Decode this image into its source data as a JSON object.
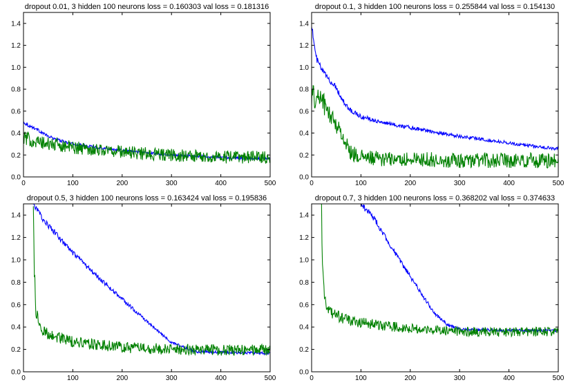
{
  "chart_data": [
    {
      "type": "line",
      "title": "dropout 0.01, 3 hidden 100 neurons  loss = 0.160303 val loss = 0.181316",
      "xlim": [
        0,
        500
      ],
      "ylim": [
        0.0,
        1.5
      ],
      "xticks": [
        0,
        100,
        200,
        300,
        400,
        500
      ],
      "yticks": [
        0.0,
        0.2,
        0.4,
        0.6,
        0.8,
        1.0,
        1.2,
        1.4
      ],
      "series": [
        {
          "color": "#0000ff",
          "x": [
            0,
            10,
            25,
            50,
            75,
            100,
            150,
            200,
            250,
            300,
            350,
            400,
            450,
            500
          ],
          "y": [
            0.5,
            0.47,
            0.44,
            0.37,
            0.33,
            0.3,
            0.27,
            0.24,
            0.22,
            0.2,
            0.19,
            0.18,
            0.17,
            0.165
          ],
          "noise": 0.012
        },
        {
          "color": "#008000",
          "x": [
            0,
            25,
            50,
            75,
            100,
            150,
            200,
            250,
            300,
            350,
            400,
            450,
            500
          ],
          "y": [
            0.36,
            0.32,
            0.3,
            0.29,
            0.27,
            0.25,
            0.23,
            0.21,
            0.2,
            0.19,
            0.18,
            0.18,
            0.18
          ],
          "noise": 0.06
        }
      ]
    },
    {
      "type": "line",
      "title": "dropout 0.1, 3 hidden 100 neurons  loss = 0.255844 val loss = 0.154130",
      "xlim": [
        0,
        500
      ],
      "ylim": [
        0.0,
        1.5
      ],
      "xticks": [
        0,
        100,
        200,
        300,
        400,
        500
      ],
      "yticks": [
        0.0,
        0.2,
        0.4,
        0.6,
        0.8,
        1.0,
        1.2,
        1.4
      ],
      "series": [
        {
          "color": "#0000ff",
          "x": [
            0,
            5,
            10,
            20,
            30,
            40,
            50,
            60,
            75,
            100,
            150,
            200,
            250,
            300,
            350,
            400,
            450,
            500
          ],
          "y": [
            1.4,
            1.2,
            1.08,
            0.98,
            0.92,
            0.86,
            0.82,
            0.72,
            0.62,
            0.55,
            0.49,
            0.45,
            0.41,
            0.37,
            0.34,
            0.31,
            0.28,
            0.255
          ],
          "noise": 0.015
        },
        {
          "color": "#008000",
          "x": [
            0,
            10,
            20,
            30,
            40,
            50,
            60,
            70,
            80,
            100,
            150,
            200,
            250,
            300,
            400,
            500
          ],
          "y": [
            0.75,
            0.7,
            0.75,
            0.6,
            0.55,
            0.48,
            0.4,
            0.3,
            0.22,
            0.18,
            0.16,
            0.16,
            0.155,
            0.15,
            0.15,
            0.15
          ],
          "noise": 0.07
        }
      ]
    },
    {
      "type": "line",
      "title": "dropout 0.5, 3 hidden 100 neurons  loss = 0.163424 val loss = 0.195836",
      "xlim": [
        0,
        500
      ],
      "ylim": [
        0.0,
        1.5
      ],
      "xticks": [
        0,
        100,
        200,
        300,
        400,
        500
      ],
      "yticks": [
        0.0,
        0.2,
        0.4,
        0.6,
        0.8,
        1.0,
        1.2,
        1.4
      ],
      "series": [
        {
          "color": "#0000ff",
          "x": [
            20,
            40,
            60,
            100,
            150,
            200,
            250,
            300,
            350,
            400,
            450,
            500
          ],
          "y": [
            1.5,
            1.36,
            1.26,
            1.06,
            0.85,
            0.65,
            0.45,
            0.26,
            0.18,
            0.175,
            0.17,
            0.165
          ],
          "noise": 0.012
        },
        {
          "color": "#008000",
          "x": [
            20,
            22,
            25,
            30,
            35,
            50,
            75,
            100,
            150,
            200,
            300,
            400,
            500
          ],
          "y": [
            1.5,
            0.9,
            0.55,
            0.45,
            0.38,
            0.34,
            0.3,
            0.27,
            0.24,
            0.22,
            0.2,
            0.195,
            0.195
          ],
          "noise": 0.05
        }
      ]
    },
    {
      "type": "line",
      "title": "dropout 0.7, 3 hidden 100 neurons  loss = 0.368202 val loss = 0.374633",
      "xlim": [
        0,
        500
      ],
      "ylim": [
        0.0,
        1.5
      ],
      "xticks": [
        0,
        100,
        200,
        300,
        400,
        500
      ],
      "yticks": [
        0.0,
        0.2,
        0.4,
        0.6,
        0.8,
        1.0,
        1.2,
        1.4
      ],
      "series": [
        {
          "color": "#0000ff",
          "x": [
            100,
            125,
            150,
            175,
            200,
            225,
            250,
            275,
            300,
            350,
            400,
            450,
            500
          ],
          "y": [
            1.5,
            1.38,
            1.2,
            1.02,
            0.85,
            0.68,
            0.52,
            0.42,
            0.38,
            0.375,
            0.37,
            0.37,
            0.37
          ],
          "noise": 0.012
        },
        {
          "color": "#008000",
          "x": [
            20,
            22,
            25,
            30,
            40,
            50,
            75,
            100,
            150,
            200,
            250,
            300,
            400,
            500
          ],
          "y": [
            1.5,
            0.9,
            0.72,
            0.6,
            0.52,
            0.5,
            0.46,
            0.44,
            0.41,
            0.39,
            0.37,
            0.36,
            0.355,
            0.36
          ],
          "noise": 0.04
        }
      ]
    }
  ]
}
